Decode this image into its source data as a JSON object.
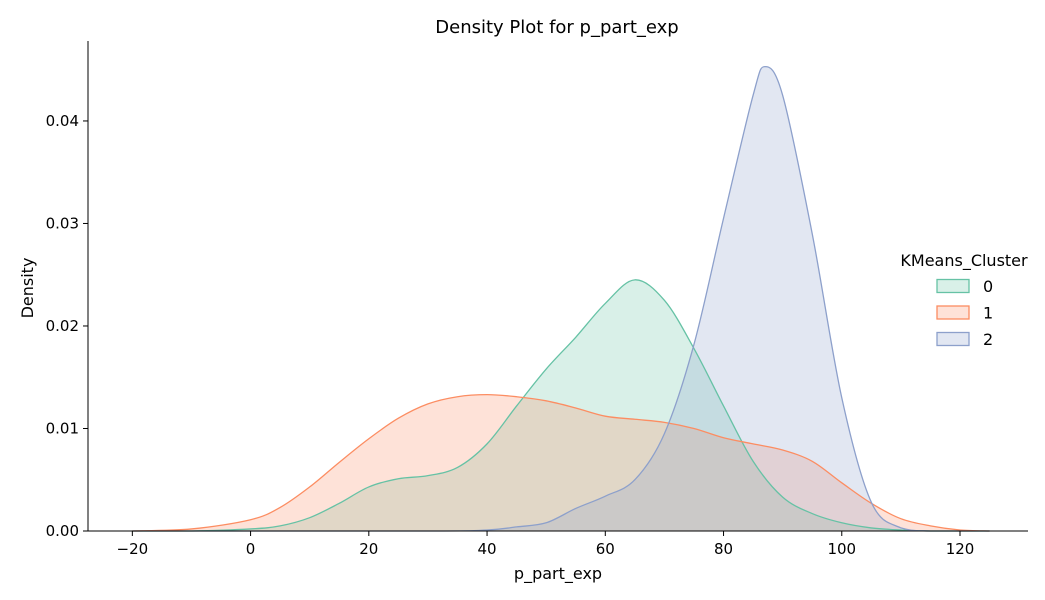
{
  "chart_data": {
    "type": "area",
    "title": "Density Plot for p_part_exp",
    "xlabel": "p_part_exp",
    "ylabel": "Density",
    "xlim": [
      -27.5,
      131.5
    ],
    "ylim": [
      0,
      0.0478
    ],
    "x_ticks": [
      -20,
      0,
      20,
      40,
      60,
      80,
      100,
      120
    ],
    "x_tick_labels": [
      "−20",
      "0",
      "20",
      "40",
      "60",
      "80",
      "100",
      "120"
    ],
    "y_ticks": [
      0.0,
      0.01,
      0.02,
      0.03,
      0.04
    ],
    "y_tick_labels": [
      "0.00",
      "0.01",
      "0.02",
      "0.03",
      "0.04"
    ],
    "grid": false,
    "legend": {
      "title": "KMeans_Cluster",
      "position": "right",
      "entries": [
        "0",
        "1",
        "2"
      ]
    },
    "series": [
      {
        "name": "0",
        "color": "#66c2a5",
        "points": [
          [
            -20,
            0.0
          ],
          [
            -10,
            0.0
          ],
          [
            0,
            0.0002
          ],
          [
            5,
            0.0005
          ],
          [
            10,
            0.0013
          ],
          [
            15,
            0.0027
          ],
          [
            20,
            0.0043
          ],
          [
            25,
            0.0051
          ],
          [
            30,
            0.0054
          ],
          [
            35,
            0.0062
          ],
          [
            40,
            0.0085
          ],
          [
            45,
            0.0122
          ],
          [
            50,
            0.0158
          ],
          [
            55,
            0.0189
          ],
          [
            60,
            0.0222
          ],
          [
            65,
            0.0245
          ],
          [
            70,
            0.0225
          ],
          [
            75,
            0.0178
          ],
          [
            80,
            0.0122
          ],
          [
            85,
            0.0068
          ],
          [
            90,
            0.0033
          ],
          [
            95,
            0.0017
          ],
          [
            100,
            0.0008
          ],
          [
            105,
            0.0003
          ],
          [
            110,
            0.0001
          ],
          [
            115,
            0.0
          ],
          [
            125,
            0.0
          ]
        ]
      },
      {
        "name": "1",
        "color": "#fc8d62",
        "points": [
          [
            -20,
            0.0
          ],
          [
            -10,
            0.0002
          ],
          [
            0,
            0.0011
          ],
          [
            5,
            0.0023
          ],
          [
            10,
            0.0043
          ],
          [
            15,
            0.0067
          ],
          [
            20,
            0.009
          ],
          [
            25,
            0.011
          ],
          [
            30,
            0.0124
          ],
          [
            35,
            0.0131
          ],
          [
            40,
            0.0133
          ],
          [
            45,
            0.0131
          ],
          [
            50,
            0.0127
          ],
          [
            55,
            0.012
          ],
          [
            60,
            0.0112
          ],
          [
            65,
            0.0109
          ],
          [
            70,
            0.0106
          ],
          [
            75,
            0.01
          ],
          [
            80,
            0.0091
          ],
          [
            85,
            0.0085
          ],
          [
            90,
            0.0079
          ],
          [
            95,
            0.0068
          ],
          [
            100,
            0.0047
          ],
          [
            105,
            0.0027
          ],
          [
            110,
            0.0012
          ],
          [
            115,
            0.0005
          ],
          [
            120,
            0.0001
          ],
          [
            125,
            0.0
          ]
        ]
      },
      {
        "name": "2",
        "color": "#8da0cb",
        "points": [
          [
            -20,
            0.0
          ],
          [
            30,
            0.0
          ],
          [
            40,
            0.0001
          ],
          [
            45,
            0.0004
          ],
          [
            50,
            0.0008
          ],
          [
            55,
            0.0022
          ],
          [
            60,
            0.0034
          ],
          [
            65,
            0.005
          ],
          [
            70,
            0.0095
          ],
          [
            75,
            0.0182
          ],
          [
            80,
            0.0305
          ],
          [
            85,
            0.0425
          ],
          [
            87,
            0.0453
          ],
          [
            90,
            0.0425
          ],
          [
            95,
            0.029
          ],
          [
            100,
            0.013
          ],
          [
            105,
            0.0028
          ],
          [
            110,
            0.0003
          ],
          [
            115,
            0.0
          ],
          [
            125,
            0.0
          ]
        ]
      }
    ]
  }
}
